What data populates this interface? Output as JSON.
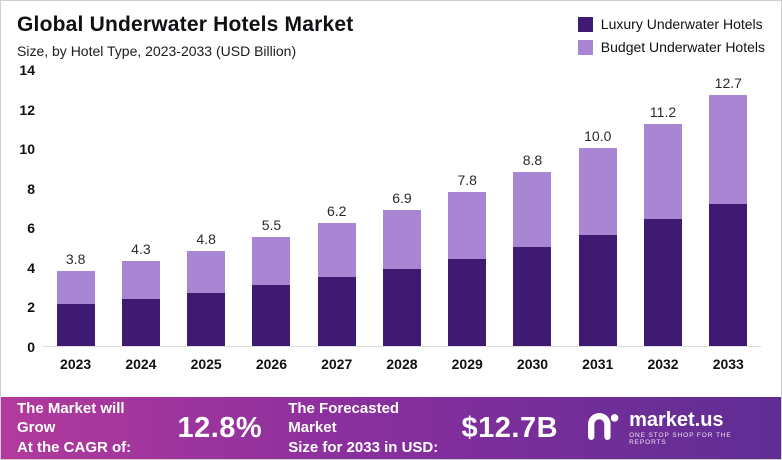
{
  "header": {
    "title": "Global Underwater Hotels Market",
    "subtitle": "Size, by Hotel Type, 2023-2033 (USD Billion)"
  },
  "chart_data": {
    "type": "bar",
    "stacked": true,
    "title": "Global Underwater Hotels Market",
    "subtitle": "Size, by Hotel Type, 2023-2033 (USD Billion)",
    "categories": [
      "2023",
      "2024",
      "2025",
      "2026",
      "2027",
      "2028",
      "2029",
      "2030",
      "2031",
      "2032",
      "2033"
    ],
    "series": [
      {
        "name": "Luxury Underwater Hotels",
        "color": "#3e1a72",
        "values": [
          2.1,
          2.4,
          2.7,
          3.1,
          3.5,
          3.9,
          4.4,
          5.0,
          5.6,
          6.4,
          7.2
        ]
      },
      {
        "name": "Budget Underwater Hotels",
        "color": "#a886d4",
        "values": [
          1.7,
          1.9,
          2.1,
          2.4,
          2.7,
          3.0,
          3.4,
          3.8,
          4.4,
          4.8,
          5.5
        ]
      }
    ],
    "totals": [
      3.8,
      4.3,
      4.8,
      5.5,
      6.2,
      6.9,
      7.8,
      8.8,
      10.0,
      11.2,
      12.7
    ],
    "total_labels": [
      "3.8",
      "4.3",
      "4.8",
      "5.5",
      "6.2",
      "6.9",
      "7.8",
      "8.8",
      "10.0",
      "11.2",
      "12.7"
    ],
    "ylim": [
      0,
      14
    ],
    "yticks": [
      0,
      2,
      4,
      6,
      8,
      10,
      12,
      14
    ],
    "grid": false,
    "legend_position": "top-right"
  },
  "footer": {
    "cagr_label_line1": "The Market will Grow",
    "cagr_label_line2": "At the CAGR of:",
    "cagr_value": "12.8%",
    "forecast_label_line1": "The Forecasted Market",
    "forecast_label_line2": "Size for 2033 in USD:",
    "forecast_value": "$12.7B",
    "logo_name": "market.us",
    "logo_tagline": "ONE STOP SHOP FOR THE REPORTS"
  }
}
